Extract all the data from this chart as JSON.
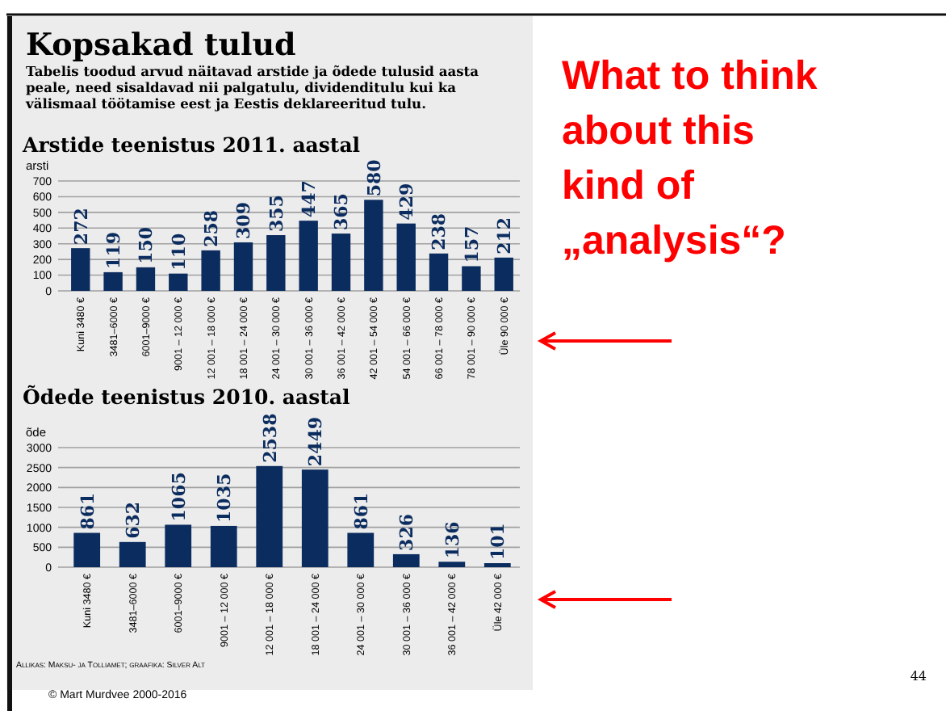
{
  "chart_data": [
    {
      "type": "other",
      "title": "Kopsakad tulud",
      "subtitle": "Tabelis toodud arvud näitavad arstide ja õdede tulusid aasta peale, need sisaldavad nii palgatulu, dividenditulu kui ka välismaal töötamise eest ja Eestis deklareeritud tulu."
    },
    {
      "type": "bar",
      "title": "Arstide teenistus 2011. aastal",
      "ylabel": "arsti",
      "categories": [
        "Kuni 3480 €",
        "3481–6000 €",
        "6001–9000 €",
        "9001 – 12 000 €",
        "12 001 – 18 000 €",
        "18 001 – 24 000 €",
        "24 001 – 30 000 €",
        "30 001 – 36 000 €",
        "36 001 – 42 000 €",
        "42 001 – 54 000 €",
        "54 001 – 66 000 €",
        "66 001 – 78 000 €",
        "78 001 – 90 000 €",
        "Üle 90 000 €"
      ],
      "values": [
        272,
        119,
        150,
        110,
        258,
        309,
        355,
        447,
        365,
        580,
        429,
        238,
        157,
        212
      ],
      "color": "#0b2c5f",
      "ylim": [
        0,
        700
      ],
      "yticks": [
        0,
        100,
        200,
        300,
        400,
        500,
        600,
        700
      ],
      "grid": "y",
      "data_labels": true
    },
    {
      "type": "bar",
      "title": "Õdede teenistus 2010. aastal",
      "ylabel": "õde",
      "categories": [
        "Kuni 3480 €",
        "3481–6000 €",
        "6001–9000 €",
        "9001 – 12 000 €",
        "12 001 – 18 000 €",
        "18 001 – 24 000 €",
        "24 001 – 30 000 €",
        "30 001 – 36 000 €",
        "36 001 – 42 000 €",
        "Üle 42 000 €"
      ],
      "values": [
        861,
        632,
        1065,
        1035,
        2538,
        2449,
        861,
        326,
        136,
        101
      ],
      "color": "#0b2c5f",
      "ylim": [
        0,
        3000
      ],
      "yticks": [
        0,
        500,
        1000,
        1500,
        2000,
        2500,
        3000
      ],
      "grid": "y",
      "data_labels": true,
      "annotations": [
        "Allikas: Maksu- ja Tolliamet; graafika: Silver Alt"
      ]
    },
    {
      "type": "other",
      "title": "What to think about this kind of „analysis“?",
      "annotations": [
        "© Mart Murdvee 2000-2016",
        "44"
      ]
    }
  ]
}
